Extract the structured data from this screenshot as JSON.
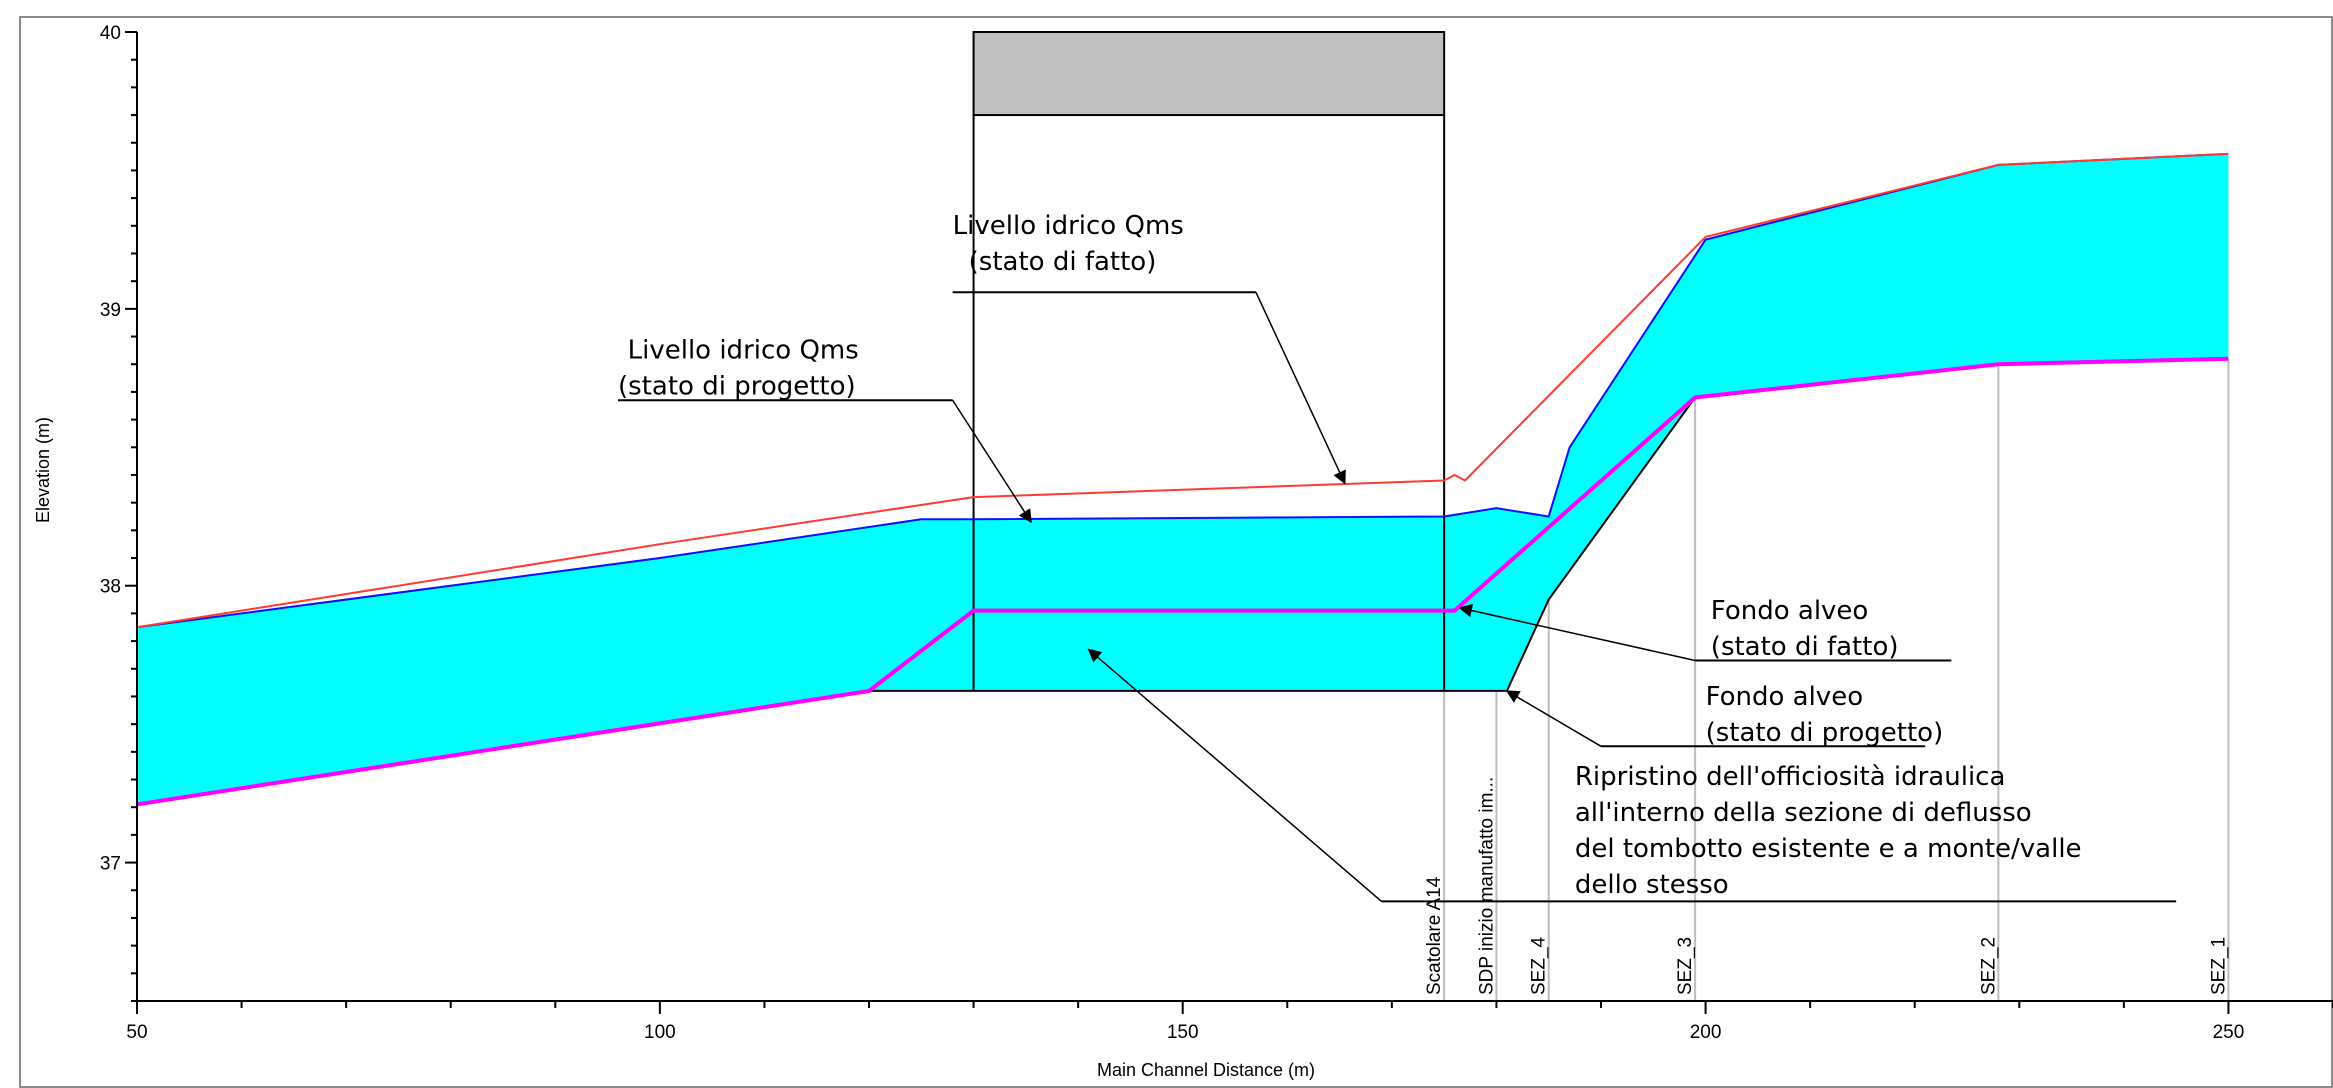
{
  "chart_data": {
    "type": "area",
    "xlabel": "Main Channel Distance (m)",
    "ylabel": "Elevation (m)",
    "xlim": [
      50,
      260
    ],
    "ylim": [
      36.5,
      40.0
    ],
    "x_ticks": [
      "50",
      "100",
      "150",
      "200",
      "250"
    ],
    "y_ticks": [
      "37",
      "38",
      "39",
      "40"
    ],
    "grid": false,
    "colors": {
      "water": "#00ffff",
      "wse_existing": "#ff3b30",
      "wse_project": "#1010ff",
      "bed_existing": "#ff00ff",
      "bed_project": "#000000",
      "deck": "#c0c0c0",
      "section_line": "#bdbdbd"
    },
    "series": [
      {
        "name": "Livello idrico Qms (stato di fatto)",
        "x": [
          50,
          100,
          130,
          175,
          176,
          177,
          200,
          228,
          250
        ],
        "y": [
          37.85,
          38.15,
          38.32,
          38.38,
          38.4,
          38.38,
          39.26,
          39.52,
          39.56
        ]
      },
      {
        "name": "Livello idrico Qms (stato di progetto)",
        "x": [
          50,
          100,
          125,
          130,
          175,
          180,
          185,
          187,
          200,
          228,
          250
        ],
        "y": [
          37.85,
          38.1,
          38.24,
          38.24,
          38.25,
          38.28,
          38.25,
          38.5,
          39.25,
          39.52,
          39.56
        ]
      },
      {
        "name": "Fondo alveo (stato di fatto)",
        "x": [
          50,
          120,
          130,
          176,
          199,
          228,
          250
        ],
        "y": [
          37.21,
          37.62,
          37.91,
          37.91,
          38.68,
          38.8,
          38.82
        ]
      },
      {
        "name": "Fondo alveo (stato di progetto)",
        "x": [
          50,
          120,
          130,
          175,
          181,
          185,
          199
        ],
        "y": [
          37.21,
          37.62,
          37.62,
          37.62,
          37.62,
          37.95,
          38.68
        ]
      }
    ],
    "culvert": {
      "x_start": 130,
      "x_end": 175,
      "soffit": 39.7,
      "deck_top": 40.0
    },
    "sections": [
      {
        "label": "Scatolare A14",
        "x": 175,
        "top": 37.62
      },
      {
        "label": "SDP inizio manufatto im...",
        "x": 180,
        "top": 37.62
      },
      {
        "label": "SEZ_4",
        "x": 185,
        "top": 37.95
      },
      {
        "label": "SEZ_3",
        "x": 199,
        "top": 38.68
      },
      {
        "label": "SEZ_2",
        "x": 228,
        "top": 38.8
      },
      {
        "label": "SEZ_1",
        "x": 250,
        "top": 38.82
      }
    ],
    "annotations": [
      {
        "lines": [
          "Livello idrico Qms",
          "(stato di fatto)"
        ],
        "line_indent": [
          0,
          1
        ],
        "text_x": 128,
        "text_y": 39.27,
        "shelf": [
          128,
          157,
          39.06
        ],
        "arrow_from": [
          157,
          39.06
        ],
        "arrow_to": [
          165.5,
          38.37
        ]
      },
      {
        "lines": [
          "Livello idrico Qms",
          "(stato di progetto)"
        ],
        "line_indent": [
          0.6,
          0
        ],
        "text_x": 96,
        "text_y": 38.82,
        "shelf": [
          96,
          128,
          38.67
        ],
        "arrow_from": [
          128,
          38.67
        ],
        "arrow_to": [
          135.5,
          38.23
        ]
      },
      {
        "lines": [
          "Fondo alveo",
          "(stato di fatto)"
        ],
        "line_indent": [
          0,
          0
        ],
        "text_x": 200.5,
        "text_y": 37.88,
        "shelf": [
          199,
          223.5,
          37.73
        ],
        "arrow_from": [
          199,
          37.73
        ],
        "arrow_to": [
          176.5,
          37.92
        ]
      },
      {
        "lines": [
          "Fondo alveo",
          "(stato di progetto)"
        ],
        "line_indent": [
          0,
          0
        ],
        "text_x": 200,
        "text_y": 37.57,
        "shelf": [
          190,
          221,
          37.42
        ],
        "arrow_from": [
          190,
          37.42
        ],
        "arrow_to": [
          181,
          37.62
        ]
      },
      {
        "lines": [
          "Ripristino dell'officiosità idraulica",
          "all'interno della sezione di deflusso",
          "del tombotto esistente e a monte/valle",
          "dello stesso"
        ],
        "line_indent": [
          0,
          0,
          0,
          0
        ],
        "text_x": 187.5,
        "text_y": 37.28,
        "shelf": [
          169,
          245,
          36.86
        ],
        "arrow_from": [
          169,
          36.86
        ],
        "arrow_to": [
          141,
          37.77
        ]
      }
    ]
  }
}
